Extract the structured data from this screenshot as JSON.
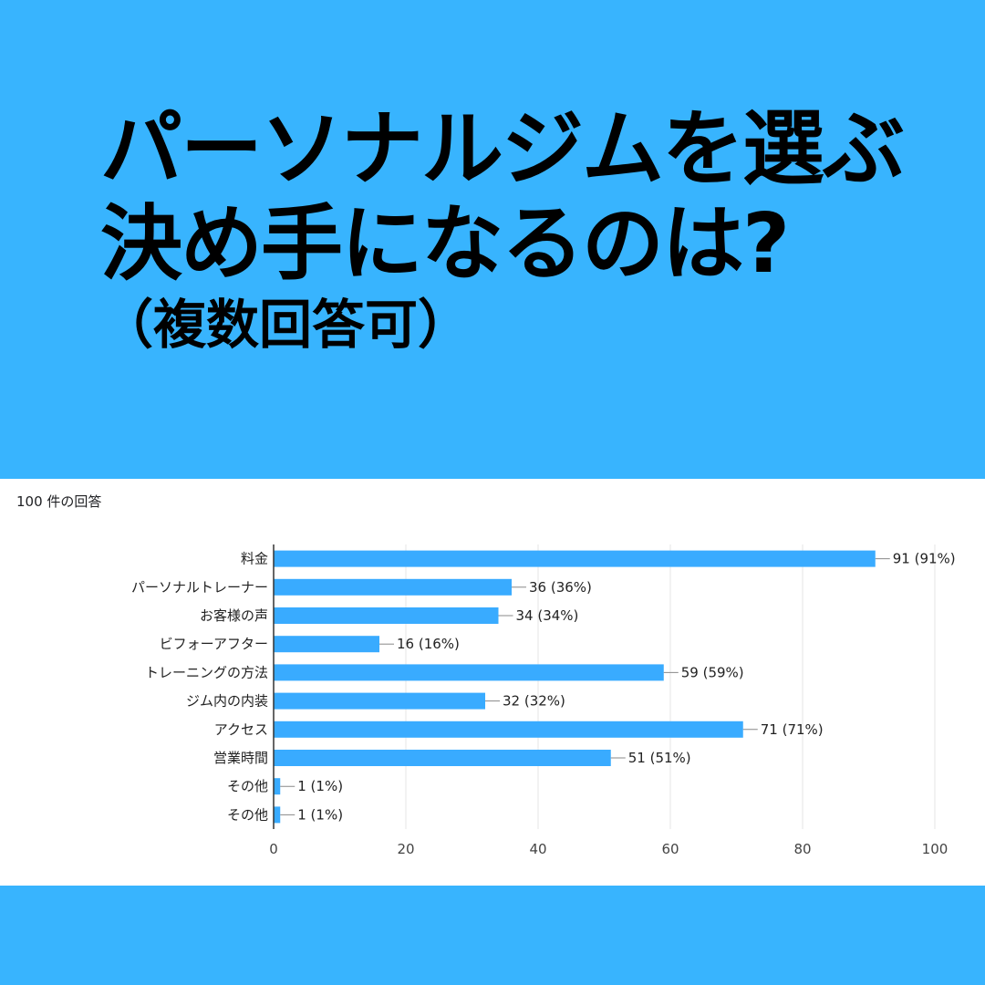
{
  "headline": {
    "line1": "パーソナルジムを選ぶ",
    "line2": "決め手になるのは?",
    "line3": "（複数回答可）"
  },
  "panel": {
    "response_count": "100 件の回答"
  },
  "colors": {
    "background": "#38b4fe",
    "bar": "#39abff",
    "panel": "#ffffff"
  },
  "chart_data": {
    "type": "bar",
    "orientation": "horizontal",
    "categories": [
      "料金",
      "パーソナルトレーナー",
      "お客様の声",
      "ビフォーアフター",
      "トレーニングの方法",
      "ジム内の内装",
      "アクセス",
      "営業時間",
      "その他",
      "その他"
    ],
    "values": [
      91,
      36,
      34,
      16,
      59,
      32,
      71,
      51,
      1,
      1
    ],
    "labels": [
      "91 (91%)",
      "36 (36%)",
      "34 (34%)",
      "16 (16%)",
      "59 (59%)",
      "32 (32%)",
      "71 (71%)",
      "51 (51%)",
      "1 (1%)",
      "1 (1%)"
    ],
    "xlim": [
      0,
      100
    ],
    "xticks": [
      0,
      20,
      40,
      60,
      80,
      100
    ],
    "grid": true,
    "title": "",
    "xlabel": "",
    "ylabel": ""
  }
}
